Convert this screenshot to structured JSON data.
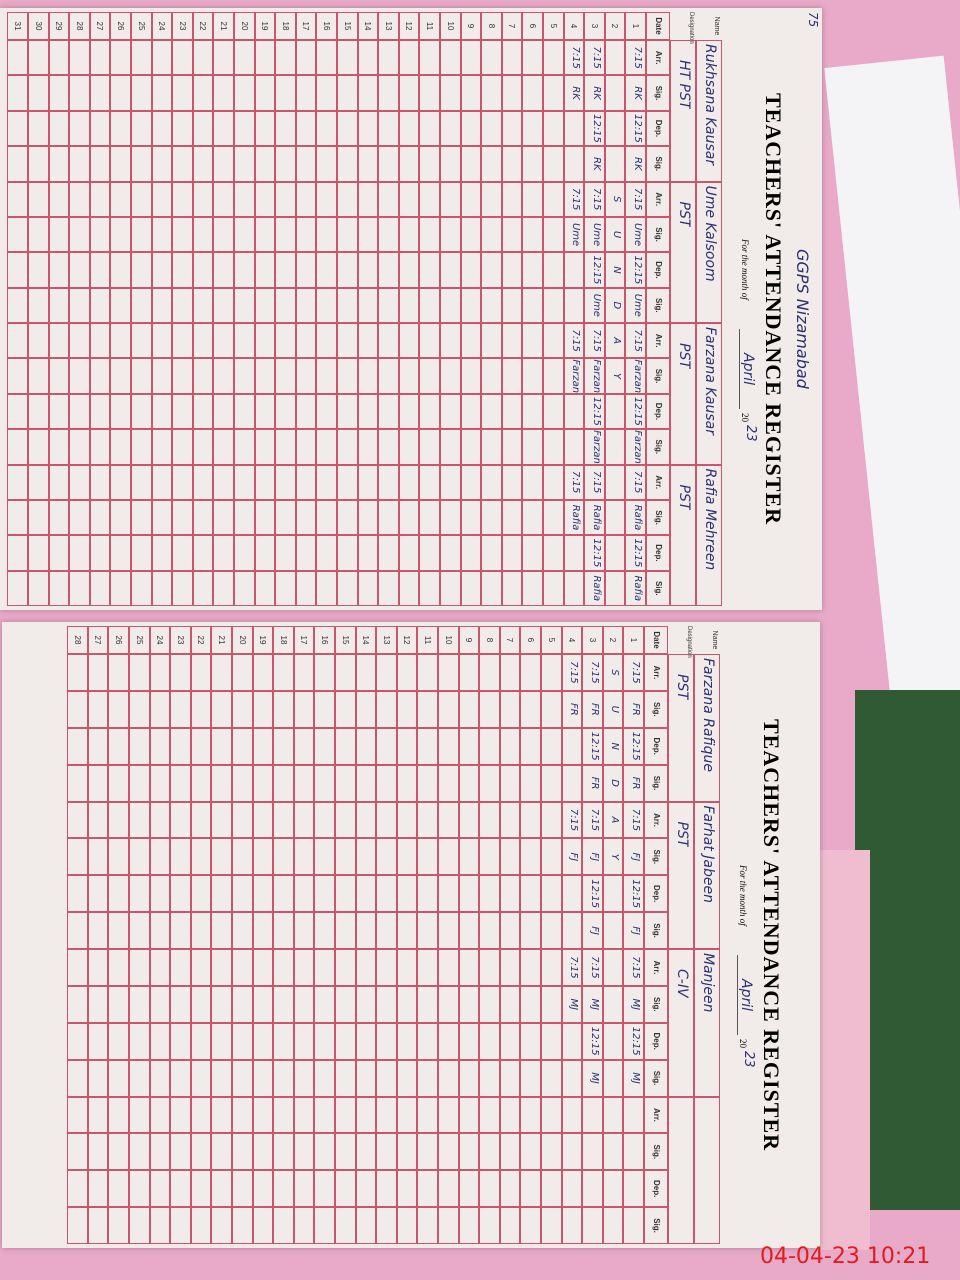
{
  "page_number": "75",
  "header_note": "GGPS Nizamabad",
  "timestamp": "04-04-23 10:21",
  "pages": [
    {
      "title": "TEACHERS' ATTENDANCE REGISTER",
      "month_label": "For the month of",
      "month": "April",
      "year_prefix": "20",
      "year": "23",
      "name_label": "Name",
      "designation_label": "Designation",
      "date_label": "Date",
      "column_labels": [
        "Arr.",
        "Sig.",
        "Dep.",
        "Sig."
      ],
      "teachers": [
        {
          "name": "Rukhsana Kausar",
          "designation": "HT PST"
        },
        {
          "name": "Ume Kalsoom",
          "designation": "PST"
        },
        {
          "name": "Farzana Kausar",
          "designation": "PST"
        },
        {
          "name": "Rafia Mehreen",
          "designation": "PST"
        }
      ],
      "dates": [
        "1",
        "2",
        "3",
        "4",
        "5",
        "6",
        "7",
        "8",
        "9",
        "10",
        "11",
        "12",
        "13",
        "14",
        "15",
        "16",
        "17",
        "18",
        "19",
        "20",
        "21",
        "22",
        "23",
        "24",
        "25",
        "26",
        "27",
        "28",
        "29",
        "30",
        "31"
      ],
      "entries": [
        [
          "7:15",
          "RK",
          "12:15",
          "RK",
          "7:15",
          "Ume",
          "12:15",
          "Ume",
          "7:15",
          "Farzana",
          "12:15",
          "Farzana",
          "7:15",
          "Rafia",
          "12:15",
          "Rafia"
        ],
        [
          null,
          null,
          null,
          null,
          "S",
          "U",
          "N",
          "D",
          "A",
          "Y",
          null,
          null,
          null,
          null,
          null,
          null
        ],
        [
          "7:15",
          "RK",
          "12:15",
          "RK",
          "7:15",
          "Ume",
          "12:15",
          "Ume",
          "7:15",
          "Farzana",
          "12:15",
          "Farzana",
          "7:15",
          "Rafia",
          "12:15",
          "Rafia"
        ],
        [
          "7:15",
          "RK",
          null,
          null,
          "7:15",
          "Ume",
          null,
          null,
          "7:15",
          "Farzana",
          null,
          null,
          "7:15",
          "Rafia",
          null,
          null
        ]
      ]
    },
    {
      "title": "TEACHERS' ATTENDANCE REGISTER",
      "month_label": "For the month of",
      "month": "April",
      "year_prefix": "20",
      "year": "23",
      "name_label": "Name",
      "designation_label": "Designation",
      "date_label": "Date",
      "column_labels": [
        "Arr.",
        "Sig.",
        "Dep.",
        "Sig."
      ],
      "teachers": [
        {
          "name": "Farzana Rafique",
          "designation": "PST"
        },
        {
          "name": "Farhat Jabeen",
          "designation": "PST"
        },
        {
          "name": "Manjeen",
          "designation": "C-IV"
        },
        {
          "name": null,
          "designation": null
        }
      ],
      "dates": [
        "1",
        "2",
        "3",
        "4",
        "5",
        "6",
        "7",
        "8",
        "9",
        "10",
        "11",
        "12",
        "13",
        "14",
        "15",
        "16",
        "17",
        "18",
        "19",
        "20",
        "21",
        "22",
        "23",
        "24",
        "25",
        "26",
        "27",
        "28"
      ],
      "entries": [
        [
          "7:15",
          "FR",
          "12:15",
          "FR",
          "7:15",
          "FJ",
          "12:15",
          "FJ",
          "7:15",
          "MJ",
          "12:15",
          "MJ",
          null,
          null,
          null,
          null
        ],
        [
          "S",
          "U",
          "N",
          "D",
          "A",
          "Y",
          null,
          null,
          null,
          null,
          null,
          null,
          null,
          null,
          null,
          null
        ],
        [
          "7:15",
          "FR",
          "12:15",
          "FR",
          "7:15",
          "FJ",
          "12:15",
          "FJ",
          "7:15",
          "MJ",
          "12:15",
          "MJ",
          null,
          null,
          null,
          null
        ],
        [
          "7:15",
          "FR",
          null,
          null,
          "7:15",
          "FJ",
          null,
          null,
          "7:15",
          "MJ",
          null,
          null,
          null,
          null,
          null,
          null
        ]
      ]
    }
  ]
}
